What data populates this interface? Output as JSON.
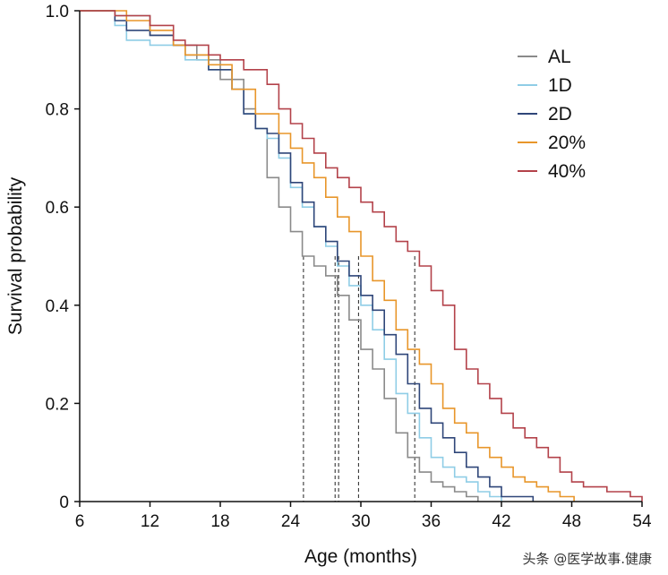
{
  "chart_data": {
    "type": "line",
    "step": true,
    "xlabel": "Age (months)",
    "ylabel": "Survival probability",
    "xlim": [
      6,
      54
    ],
    "ylim": [
      0,
      1.0
    ],
    "xticks": [
      6,
      12,
      18,
      24,
      30,
      36,
      42,
      48,
      54
    ],
    "yticks": [
      0,
      0.2,
      0.4,
      0.6,
      0.8,
      1.0
    ],
    "ytick_labels": [
      "0",
      "0.2",
      "0.4",
      "0.6",
      "0.8",
      "1.0"
    ],
    "legend_position": "top-right",
    "median_markers": [
      {
        "series": "AL",
        "x": 25.1
      },
      {
        "series": "1D",
        "x": 27.8
      },
      {
        "series": "2D",
        "x": 28.1
      },
      {
        "series": "20%",
        "x": 29.8
      },
      {
        "series": "40%",
        "x": 34.6
      }
    ],
    "series": [
      {
        "name": "AL",
        "color": "#8a8a8a",
        "points": [
          [
            6,
            1.0
          ],
          [
            9,
            0.99
          ],
          [
            12,
            0.95
          ],
          [
            14,
            0.93
          ],
          [
            16,
            0.9
          ],
          [
            18,
            0.86
          ],
          [
            20,
            0.8
          ],
          [
            21,
            0.76
          ],
          [
            22,
            0.66
          ],
          [
            23,
            0.6
          ],
          [
            24,
            0.55
          ],
          [
            25,
            0.5
          ],
          [
            26,
            0.48
          ],
          [
            27,
            0.46
          ],
          [
            28,
            0.42
          ],
          [
            29,
            0.37
          ],
          [
            30,
            0.31
          ],
          [
            31,
            0.27
          ],
          [
            32,
            0.21
          ],
          [
            33,
            0.14
          ],
          [
            34,
            0.09
          ],
          [
            35,
            0.06
          ],
          [
            36,
            0.04
          ],
          [
            37,
            0.03
          ],
          [
            38,
            0.02
          ],
          [
            39,
            0.01
          ],
          [
            40,
            0.0
          ]
        ]
      },
      {
        "name": "1D",
        "color": "#8fcde6",
        "points": [
          [
            6,
            1.0
          ],
          [
            9,
            0.97
          ],
          [
            10,
            0.94
          ],
          [
            12,
            0.93
          ],
          [
            15,
            0.9
          ],
          [
            17,
            0.88
          ],
          [
            19,
            0.84
          ],
          [
            20,
            0.79
          ],
          [
            21,
            0.76
          ],
          [
            22,
            0.74
          ],
          [
            23,
            0.7
          ],
          [
            24,
            0.64
          ],
          [
            25,
            0.6
          ],
          [
            26,
            0.56
          ],
          [
            27,
            0.52
          ],
          [
            28,
            0.48
          ],
          [
            29,
            0.44
          ],
          [
            30,
            0.4
          ],
          [
            31,
            0.35
          ],
          [
            32,
            0.29
          ],
          [
            33,
            0.22
          ],
          [
            34,
            0.18
          ],
          [
            35,
            0.13
          ],
          [
            36,
            0.09
          ],
          [
            37,
            0.07
          ],
          [
            38,
            0.05
          ],
          [
            39,
            0.04
          ],
          [
            40,
            0.02
          ],
          [
            41,
            0.01
          ],
          [
            42,
            0.0
          ]
        ]
      },
      {
        "name": "2D",
        "color": "#2f4679",
        "points": [
          [
            6,
            1.0
          ],
          [
            9,
            0.98
          ],
          [
            10,
            0.96
          ],
          [
            12,
            0.95
          ],
          [
            14,
            0.93
          ],
          [
            15,
            0.91
          ],
          [
            17,
            0.88
          ],
          [
            19,
            0.84
          ],
          [
            20,
            0.79
          ],
          [
            21,
            0.76
          ],
          [
            22,
            0.75
          ],
          [
            23,
            0.71
          ],
          [
            24,
            0.65
          ],
          [
            25,
            0.61
          ],
          [
            26,
            0.56
          ],
          [
            27,
            0.53
          ],
          [
            28,
            0.49
          ],
          [
            29,
            0.46
          ],
          [
            30,
            0.42
          ],
          [
            31,
            0.39
          ],
          [
            32,
            0.34
          ],
          [
            33,
            0.3
          ],
          [
            34,
            0.24
          ],
          [
            35,
            0.19
          ],
          [
            36,
            0.16
          ],
          [
            37,
            0.13
          ],
          [
            38,
            0.1
          ],
          [
            39,
            0.07
          ],
          [
            40,
            0.05
          ],
          [
            41,
            0.03
          ],
          [
            42,
            0.01
          ],
          [
            44.7,
            0.0
          ]
        ]
      },
      {
        "name": "20%",
        "color": "#e8962a",
        "points": [
          [
            6,
            1.0
          ],
          [
            10,
            0.98
          ],
          [
            12,
            0.96
          ],
          [
            14,
            0.93
          ],
          [
            15,
            0.91
          ],
          [
            17,
            0.89
          ],
          [
            19,
            0.84
          ],
          [
            21,
            0.79
          ],
          [
            23,
            0.75
          ],
          [
            24,
            0.72
          ],
          [
            25,
            0.69
          ],
          [
            26,
            0.66
          ],
          [
            27,
            0.62
          ],
          [
            28,
            0.58
          ],
          [
            29,
            0.55
          ],
          [
            30,
            0.5
          ],
          [
            31,
            0.45
          ],
          [
            32,
            0.41
          ],
          [
            33,
            0.35
          ],
          [
            34,
            0.31
          ],
          [
            35,
            0.28
          ],
          [
            36,
            0.24
          ],
          [
            37,
            0.19
          ],
          [
            38,
            0.16
          ],
          [
            39,
            0.14
          ],
          [
            40,
            0.11
          ],
          [
            41,
            0.09
          ],
          [
            42,
            0.07
          ],
          [
            43,
            0.05
          ],
          [
            44,
            0.04
          ],
          [
            45,
            0.03
          ],
          [
            46,
            0.02
          ],
          [
            47,
            0.01
          ],
          [
            48.2,
            0.0
          ]
        ]
      },
      {
        "name": "40%",
        "color": "#b3424a",
        "points": [
          [
            6,
            1.0
          ],
          [
            9,
            0.99
          ],
          [
            12,
            0.97
          ],
          [
            14,
            0.94
          ],
          [
            15,
            0.93
          ],
          [
            17,
            0.91
          ],
          [
            18,
            0.9
          ],
          [
            20,
            0.88
          ],
          [
            22,
            0.85
          ],
          [
            23,
            0.8
          ],
          [
            24,
            0.77
          ],
          [
            25,
            0.74
          ],
          [
            26,
            0.71
          ],
          [
            27,
            0.68
          ],
          [
            28,
            0.66
          ],
          [
            29,
            0.64
          ],
          [
            30,
            0.61
          ],
          [
            31,
            0.59
          ],
          [
            32,
            0.56
          ],
          [
            33,
            0.53
          ],
          [
            34,
            0.51
          ],
          [
            35,
            0.48
          ],
          [
            36,
            0.43
          ],
          [
            37,
            0.4
          ],
          [
            38,
            0.31
          ],
          [
            39,
            0.27
          ],
          [
            40,
            0.24
          ],
          [
            41,
            0.21
          ],
          [
            42,
            0.18
          ],
          [
            43,
            0.15
          ],
          [
            44,
            0.13
          ],
          [
            45,
            0.11
          ],
          [
            46,
            0.09
          ],
          [
            47,
            0.06
          ],
          [
            48,
            0.04
          ],
          [
            49,
            0.03
          ],
          [
            51,
            0.02
          ],
          [
            53,
            0.01
          ],
          [
            54,
            0.0
          ]
        ]
      }
    ]
  },
  "watermark": "头条 @医学故事.健康"
}
